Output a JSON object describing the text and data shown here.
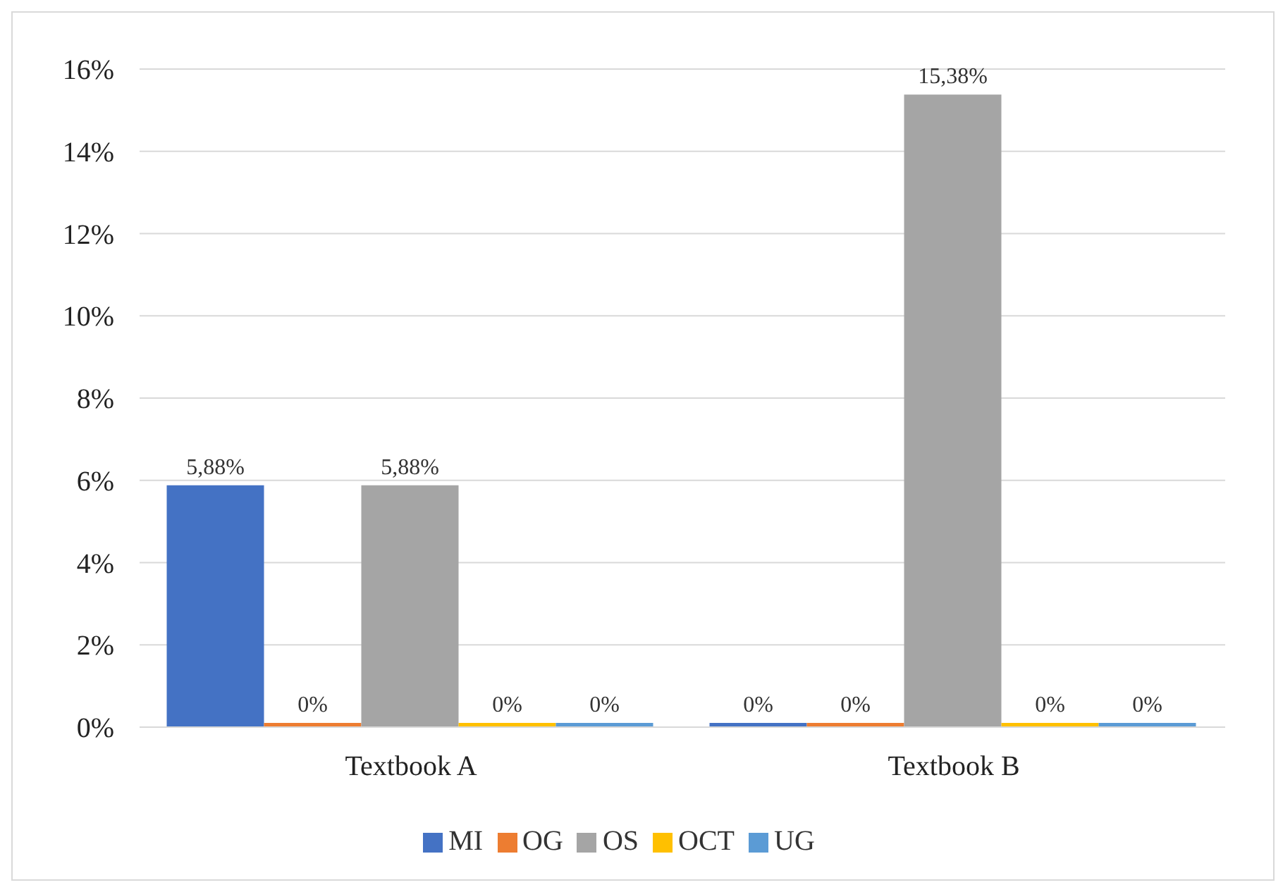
{
  "chart_data": {
    "type": "bar",
    "categories": [
      "Textbook A",
      "Textbook B"
    ],
    "series": [
      {
        "name": "MI",
        "color": "#4472c4",
        "values": [
          5.88,
          0
        ],
        "value_labels": [
          "5,88%",
          "0%"
        ]
      },
      {
        "name": "OG",
        "color": "#ed7d31",
        "values": [
          0,
          0
        ],
        "value_labels": [
          "0%",
          "0%"
        ]
      },
      {
        "name": "OS",
        "color": "#a5a5a5",
        "values": [
          5.88,
          15.38
        ],
        "value_labels": [
          "5,88%",
          "15,38%"
        ]
      },
      {
        "name": "OCT",
        "color": "#ffc000",
        "values": [
          0,
          0
        ],
        "value_labels": [
          "0%",
          "0%"
        ]
      },
      {
        "name": "UG",
        "color": "#5b9bd5",
        "values": [
          0,
          0
        ],
        "value_labels": [
          "0%",
          "0%"
        ]
      }
    ],
    "ylim": [
      0,
      16
    ],
    "yticks": [
      {
        "value": 0,
        "label": "0%"
      },
      {
        "value": 2,
        "label": "2%"
      },
      {
        "value": 4,
        "label": "4%"
      },
      {
        "value": 6,
        "label": "6%"
      },
      {
        "value": 8,
        "label": "8%"
      },
      {
        "value": 10,
        "label": "10%"
      },
      {
        "value": 12,
        "label": "12%"
      },
      {
        "value": 14,
        "label": "14%"
      },
      {
        "value": 16,
        "label": "16%"
      }
    ],
    "grid": "y",
    "legend": "bottom"
  }
}
